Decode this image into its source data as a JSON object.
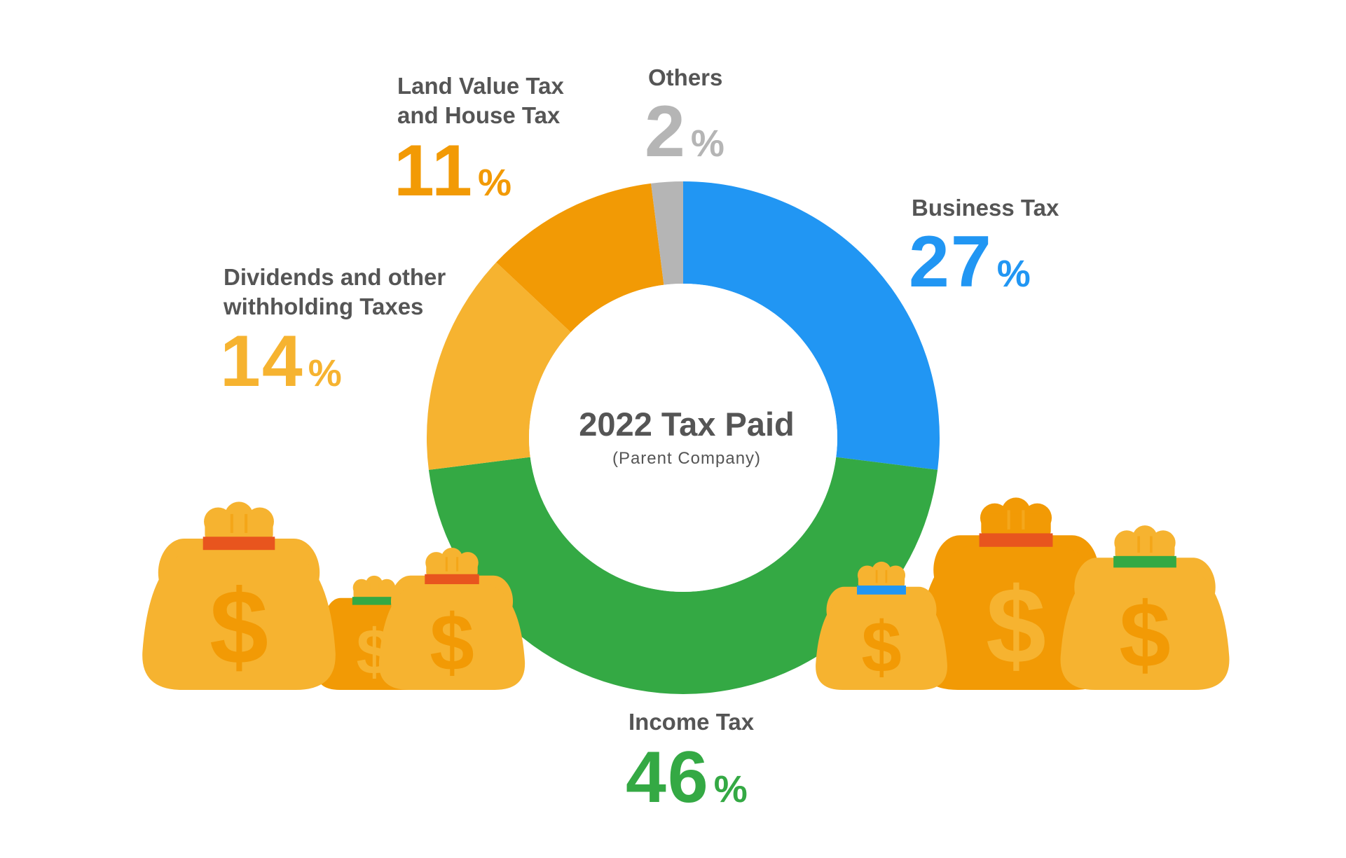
{
  "chart_data": {
    "type": "pie",
    "title": "2022 Tax Paid",
    "subtitle": "(Parent Company)",
    "percent_sign": "%",
    "slices": [
      {
        "label": "Business Tax",
        "value": 27,
        "color": "#2196F3"
      },
      {
        "label": "Income Tax",
        "value": 46,
        "color": "#34A944"
      },
      {
        "label": "Dividends and other withholding Taxes",
        "value": 14,
        "color": "#F6B330"
      },
      {
        "label": "Land Value Tax and House Tax",
        "value": 11,
        "color": "#F29A05"
      },
      {
        "label": "Others",
        "value": 2,
        "color": "#B5B5B5"
      }
    ],
    "labels": {
      "business": {
        "line1": "Business Tax",
        "value": "27"
      },
      "income": {
        "line1": "Income Tax",
        "value": "46"
      },
      "dividends": {
        "line1": "Dividends and other",
        "line2": "withholding Taxes",
        "value": "14"
      },
      "land": {
        "line1": "Land Value Tax",
        "line2": "and House Tax",
        "value": "11"
      },
      "others": {
        "line1": "Others",
        "value": "2"
      }
    }
  },
  "decor": {
    "bag_light": "#F6B330",
    "bag_dark": "#F29A05",
    "dollar_sign": "$",
    "band_colors": [
      "#E8551E",
      "#34A944",
      "#2196F3"
    ]
  }
}
